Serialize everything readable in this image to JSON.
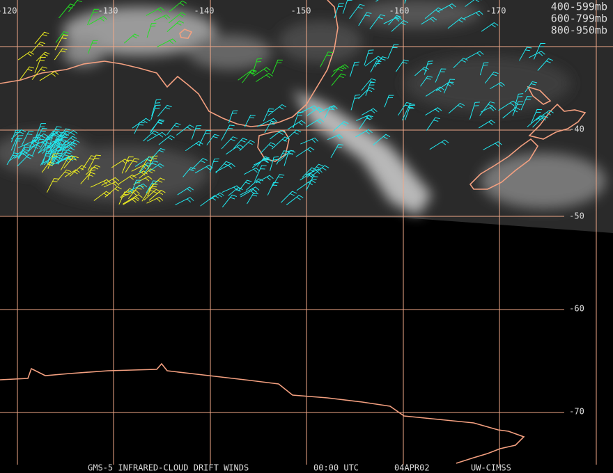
{
  "map": {
    "longitude_labels": [
      "-120",
      "-130",
      "-140",
      "-150",
      "-160",
      "-170"
    ],
    "latitude_labels": [
      "-40",
      "-50",
      "-60",
      "-70"
    ],
    "legend": [
      {
        "label": "400-599mb",
        "color": "#22e022"
      },
      {
        "label": "600-799mb",
        "color": "#f0f020"
      },
      {
        "label": "800-950mb",
        "color": "#20e8f0"
      }
    ],
    "footer": {
      "title": "GMS-5 INFRARED-CLOUD DRIFT WINDS",
      "time": "00:00 UTC",
      "date": "04APR02",
      "source": "UW-CIMSS"
    }
  }
}
